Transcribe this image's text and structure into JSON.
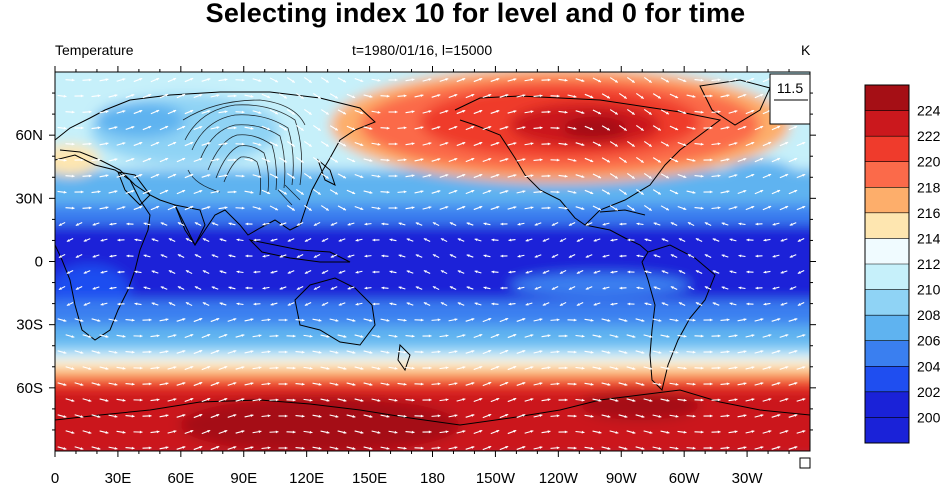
{
  "title": "Selecting index 10 for level and 0 for time",
  "left_string": "Temperature",
  "center_string": "t=1980/01/16, l=15000",
  "right_string": "K",
  "reference_vector_label": "11.5",
  "x_tick_labels": [
    "0",
    "30E",
    "60E",
    "90E",
    "120E",
    "150E",
    "180",
    "150W",
    "120W",
    "90W",
    "60W",
    "30W"
  ],
  "y_tick_labels": [
    "60N",
    "30N",
    "0",
    "30S",
    "60S"
  ],
  "colorbar": {
    "labels": [
      "224",
      "222",
      "220",
      "218",
      "216",
      "214",
      "212",
      "210",
      "208",
      "206",
      "204",
      "202",
      "200"
    ],
    "colors": [
      "#a50f15",
      "#cb181d",
      "#ef3b2c",
      "#fb6a4a",
      "#fdae6b",
      "#fee6b0",
      "#f0fbff",
      "#c6f0fa",
      "#8fd3f5",
      "#5fb3f0",
      "#3a7ff0",
      "#1f4ef0",
      "#1a22d8",
      "#1a22d8"
    ]
  },
  "colors": {
    "land_outline": "#000000",
    "vector": "#ffffff",
    "contour": "#000000"
  }
}
